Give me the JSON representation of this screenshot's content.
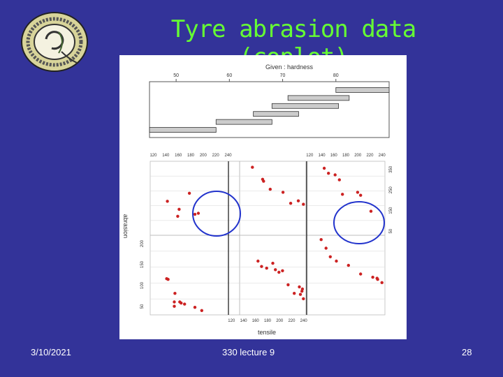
{
  "slide": {
    "title": "Tyre abrasion data (coplot)",
    "date": "3/10/2021",
    "lecture": "330 lecture 9",
    "page": "28"
  },
  "colors": {
    "background": "#333399",
    "title": "#66ff33",
    "points": "#cc2222",
    "circles": "#2233cc"
  },
  "chart_data": {
    "type": "scatter",
    "given": {
      "label": "Given : hardness",
      "ticks": [
        50,
        60,
        70,
        80
      ],
      "range": [
        45,
        90
      ],
      "intervals": [
        [
          45,
          57.5
        ],
        [
          57.5,
          68
        ],
        [
          64.5,
          73
        ],
        [
          68,
          80.5
        ],
        [
          71,
          82.5
        ],
        [
          80,
          90
        ]
      ]
    },
    "xlabel": "tensile",
    "ylabel": "abrasion",
    "x_ticks": [
      120,
      140,
      160,
      180,
      200,
      220,
      240
    ],
    "x_tick_labels": [
      "120",
      "140",
      "160",
      "180",
      "200",
      "220",
      "240"
    ],
    "y_ticks_left": [
      50,
      100,
      150,
      200
    ],
    "y_ticks_right": [
      50,
      150,
      250,
      350
    ],
    "xlim": [
      115,
      245
    ],
    "ylim": [
      20,
      390
    ],
    "panels": [
      {
        "row": 1,
        "col": 1,
        "points": [
          [
            140,
            190
          ],
          [
            155,
            115
          ],
          [
            157,
            150
          ],
          [
            172,
            230
          ],
          [
            180,
            125
          ],
          [
            185,
            130
          ]
        ]
      },
      {
        "row": 1,
        "col": 2,
        "points": [
          [
            140,
            360
          ],
          [
            160,
            300
          ],
          [
            162,
            290
          ],
          [
            175,
            250
          ],
          [
            200,
            235
          ],
          [
            215,
            180
          ],
          [
            230,
            192
          ],
          [
            240,
            175
          ]
        ]
      },
      {
        "row": 1,
        "col": 3,
        "points": [
          [
            145,
            355
          ],
          [
            152,
            330
          ],
          [
            163,
            322
          ],
          [
            170,
            297
          ],
          [
            175,
            225
          ],
          [
            200,
            235
          ],
          [
            205,
            220
          ],
          [
            222,
            140
          ]
        ]
      },
      {
        "row": 2,
        "col": 1,
        "points": [
          [
            141,
            185
          ],
          [
            139,
            188
          ],
          [
            150,
            60
          ],
          [
            150,
            80
          ],
          [
            151,
            120
          ],
          [
            160,
            75
          ],
          [
            158,
            80
          ],
          [
            165,
            70
          ],
          [
            180,
            55
          ],
          [
            190,
            40
          ]
        ]
      },
      {
        "row": 2,
        "col": 2,
        "points": [
          [
            151,
            270
          ],
          [
            158,
            245
          ],
          [
            168,
            237
          ],
          [
            180,
            260
          ],
          [
            185,
            230
          ],
          [
            192,
            218
          ],
          [
            199,
            225
          ],
          [
            210,
            160
          ],
          [
            222,
            120
          ],
          [
            232,
            150
          ],
          [
            238,
            140
          ],
          [
            237,
            130
          ],
          [
            234,
            115
          ],
          [
            240,
            95
          ]
        ]
      },
      {
        "row": 2,
        "col": 3,
        "points": [
          [
            140,
            370
          ],
          [
            148,
            330
          ],
          [
            155,
            290
          ],
          [
            165,
            270
          ],
          [
            185,
            250
          ],
          [
            205,
            210
          ],
          [
            225,
            195
          ],
          [
            232,
            190
          ],
          [
            233,
            185
          ],
          [
            240,
            170
          ]
        ]
      }
    ]
  }
}
